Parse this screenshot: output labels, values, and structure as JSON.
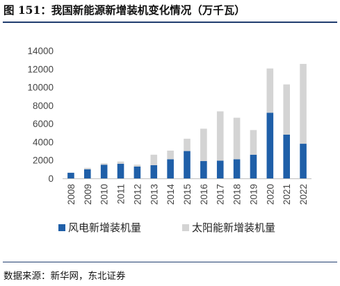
{
  "figure": {
    "title": "图 151：我国新能源新增装机变化情况（万千瓦）",
    "source": "数据来源：新华网，东北证券"
  },
  "colors": {
    "wind": "#1f5fa8",
    "solar": "#d4d4d4",
    "rule": "#1f3c6e"
  },
  "chart_data": {
    "type": "bar",
    "stacked": true,
    "title": "图 151：我国新能源新增装机变化情况（万千瓦）",
    "categories": [
      "2008",
      "2009",
      "2010",
      "2011",
      "2012",
      "2013",
      "2014",
      "2015",
      "2016",
      "2017",
      "2018",
      "2019",
      "2020",
      "2021",
      "2022"
    ],
    "series": [
      {
        "name": "风电新增装机量",
        "color": "#1f5fa8",
        "values": [
          620,
          1000,
          1500,
          1600,
          1300,
          1450,
          2100,
          3000,
          1900,
          1950,
          2100,
          2600,
          7200,
          4800,
          3800
        ]
      },
      {
        "name": "太阳能新增装机量",
        "color": "#d4d4d4",
        "values": [
          0,
          150,
          150,
          250,
          200,
          1150,
          950,
          1350,
          3550,
          5400,
          4550,
          2700,
          4850,
          5500,
          8750
        ]
      }
    ],
    "ylim": [
      0,
      14000
    ],
    "yticks": [
      0,
      2000,
      4000,
      6000,
      8000,
      10000,
      12000,
      14000
    ],
    "grid": false,
    "legend_position": "bottom"
  }
}
